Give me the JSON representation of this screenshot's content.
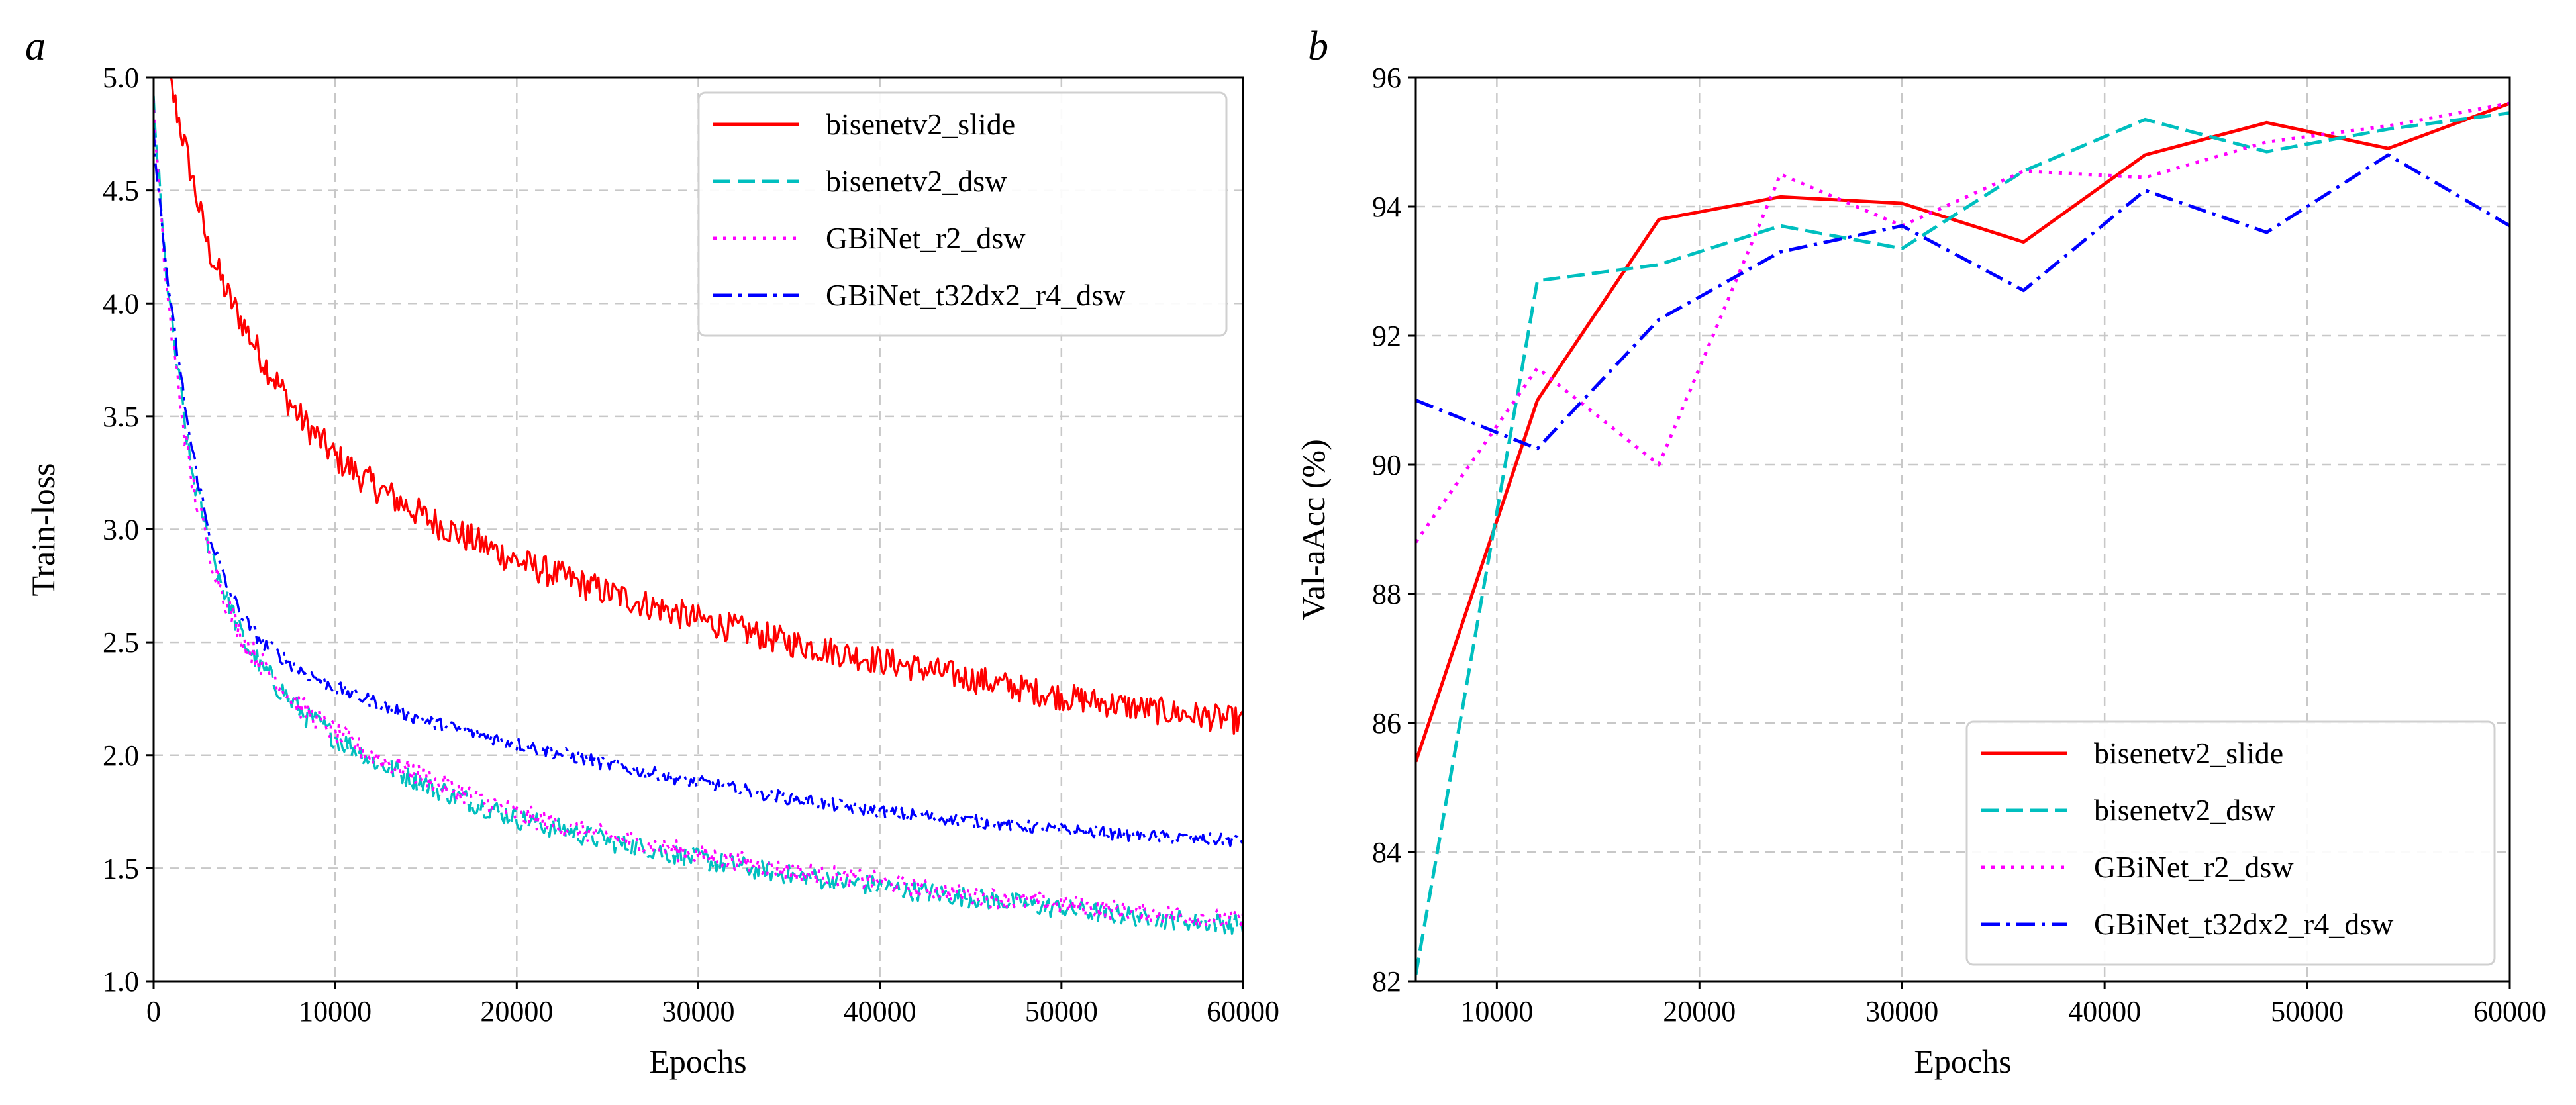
{
  "colors": {
    "bisenetv2_slide": "#ff0000",
    "bisenetv2_dsw": "#00bfbf",
    "GBiNet_r2_dsw": "#ff00ff",
    "GBiNet_t32dx2_r4_dsw": "#0000ff",
    "grid": "#c8c8c8"
  },
  "chart_data": [
    {
      "panel": "a",
      "type": "line",
      "title": "",
      "xlabel": "Epochs",
      "ylabel": "Train-loss",
      "xlim": [
        0,
        60000
      ],
      "ylim": [
        1.0,
        5.0
      ],
      "xticks": [
        0,
        10000,
        20000,
        30000,
        40000,
        50000,
        60000
      ],
      "xtick_labels": [
        "0",
        "10000",
        "20000",
        "30000",
        "40000",
        "50000",
        "60000"
      ],
      "yticks": [
        1.0,
        1.5,
        2.0,
        2.5,
        3.0,
        3.5,
        4.0,
        4.5,
        5.0
      ],
      "ytick_labels": [
        "1.0",
        "1.5",
        "2.0",
        "2.5",
        "3.0",
        "3.5",
        "4.0",
        "4.5",
        "5.0"
      ],
      "grid": true,
      "legend_position": "top-right",
      "series": [
        {
          "name": "bisenetv2_slide",
          "style": "solid",
          "noise": 0.07,
          "x": [
            0,
            1000,
            2000,
            3000,
            4000,
            5000,
            6000,
            8000,
            10000,
            12000,
            15000,
            20000,
            25000,
            30000,
            35000,
            40000,
            45000,
            50000,
            55000,
            60000
          ],
          "y": [
            5.2,
            4.95,
            4.6,
            4.25,
            4.05,
            3.9,
            3.75,
            3.5,
            3.32,
            3.2,
            3.05,
            2.86,
            2.72,
            2.6,
            2.5,
            2.42,
            2.34,
            2.26,
            2.2,
            2.15
          ]
        },
        {
          "name": "bisenetv2_dsw",
          "style": "dashed",
          "noise": 0.06,
          "x": [
            0,
            500,
            1000,
            2000,
            3000,
            4000,
            5000,
            6000,
            8000,
            10000,
            12000,
            15000,
            20000,
            25000,
            30000,
            35000,
            40000,
            45000,
            50000,
            55000,
            60000
          ],
          "y": [
            4.9,
            4.3,
            3.9,
            3.3,
            2.95,
            2.7,
            2.5,
            2.38,
            2.2,
            2.08,
            1.98,
            1.87,
            1.72,
            1.62,
            1.54,
            1.47,
            1.42,
            1.37,
            1.32,
            1.28,
            1.25
          ]
        },
        {
          "name": "GBiNet_r2_dsw",
          "style": "dotted",
          "noise": 0.06,
          "x": [
            0,
            500,
            1000,
            2000,
            3000,
            4000,
            5000,
            6000,
            8000,
            10000,
            12000,
            15000,
            20000,
            25000,
            30000,
            35000,
            40000,
            45000,
            50000,
            55000,
            60000
          ],
          "y": [
            4.85,
            4.25,
            3.85,
            3.25,
            2.92,
            2.68,
            2.5,
            2.4,
            2.22,
            2.1,
            2.0,
            1.9,
            1.74,
            1.64,
            1.56,
            1.49,
            1.44,
            1.38,
            1.34,
            1.3,
            1.27
          ]
        },
        {
          "name": "GBiNet_t32dx2_r4_dsw",
          "style": "dashdot",
          "noise": 0.035,
          "x": [
            0,
            500,
            1000,
            2000,
            3000,
            4000,
            5000,
            6000,
            8000,
            10000,
            12000,
            15000,
            20000,
            25000,
            30000,
            35000,
            40000,
            45000,
            50000,
            55000,
            60000
          ],
          "y": [
            4.75,
            4.3,
            3.95,
            3.4,
            3.0,
            2.75,
            2.6,
            2.5,
            2.38,
            2.3,
            2.24,
            2.15,
            2.05,
            1.96,
            1.88,
            1.81,
            1.75,
            1.71,
            1.67,
            1.64,
            1.62
          ]
        }
      ]
    },
    {
      "panel": "b",
      "type": "line",
      "title": "",
      "xlabel": "Epochs",
      "ylabel": "Val-aAcc (%)",
      "xlim": [
        6000,
        60000
      ],
      "ylim": [
        82,
        96
      ],
      "xticks": [
        10000,
        20000,
        30000,
        40000,
        50000,
        60000
      ],
      "xtick_labels": [
        "10000",
        "20000",
        "30000",
        "40000",
        "50000",
        "60000"
      ],
      "yticks": [
        82,
        84,
        86,
        88,
        90,
        92,
        94,
        96
      ],
      "ytick_labels": [
        "82",
        "84",
        "86",
        "88",
        "90",
        "92",
        "94",
        "96"
      ],
      "grid": true,
      "legend_position": "bottom-right",
      "series": [
        {
          "name": "bisenetv2_slide",
          "style": "solid",
          "x": [
            6000,
            12000,
            18000,
            24000,
            30000,
            36000,
            42000,
            48000,
            54000,
            60000
          ],
          "y": [
            85.4,
            91.0,
            93.8,
            94.15,
            94.05,
            93.45,
            94.8,
            95.3,
            94.9,
            95.6
          ]
        },
        {
          "name": "bisenetv2_dsw",
          "style": "dashed",
          "x": [
            6000,
            12000,
            18000,
            24000,
            30000,
            36000,
            42000,
            48000,
            54000,
            60000
          ],
          "y": [
            82.1,
            92.85,
            93.1,
            93.7,
            93.35,
            94.55,
            95.35,
            94.85,
            95.2,
            95.45
          ]
        },
        {
          "name": "GBiNet_r2_dsw",
          "style": "dotted",
          "x": [
            6000,
            12000,
            18000,
            24000,
            30000,
            36000,
            42000,
            48000,
            54000,
            60000
          ],
          "y": [
            88.8,
            91.5,
            90.0,
            94.5,
            93.7,
            94.55,
            94.45,
            95.0,
            95.25,
            95.6
          ]
        },
        {
          "name": "GBiNet_t32dx2_r4_dsw",
          "style": "dashdot",
          "x": [
            6000,
            12000,
            18000,
            24000,
            30000,
            36000,
            42000,
            48000,
            54000,
            60000
          ],
          "y": [
            91.0,
            90.25,
            92.25,
            93.3,
            93.7,
            92.7,
            94.25,
            93.6,
            94.8,
            93.7
          ]
        }
      ]
    }
  ]
}
